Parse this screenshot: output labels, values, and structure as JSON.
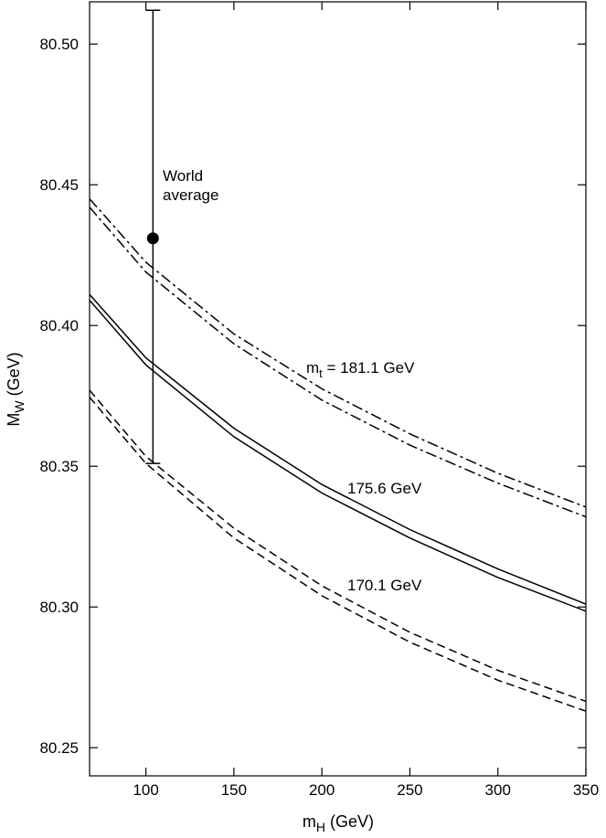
{
  "chart_data": {
    "type": "line",
    "title": "",
    "xlabel": {
      "main": "m",
      "sub": "H",
      "unit": " (GeV)"
    },
    "ylabel": {
      "main": "M",
      "sub": "W",
      "unit": " (GeV)"
    },
    "xlim": [
      68,
      350
    ],
    "ylim": [
      80.24,
      80.515
    ],
    "xticks": [
      100,
      150,
      200,
      250,
      300,
      350
    ],
    "xtick_labels": [
      "100",
      "150",
      "200",
      "250",
      "300",
      "350"
    ],
    "yticks": [
      80.25,
      80.3,
      80.35,
      80.4,
      80.45,
      80.5
    ],
    "ytick_labels": [
      "80.25",
      "80.30",
      "80.35",
      "80.40",
      "80.45",
      "80.50"
    ],
    "grid": false,
    "series": [
      {
        "style": "dashdot",
        "group": "mt_181.1",
        "x": [
          68,
          100,
          150,
          200,
          250,
          300,
          350
        ],
        "y": [
          80.445,
          80.4225,
          80.397,
          80.3775,
          80.3615,
          80.3475,
          80.3355
        ]
      },
      {
        "style": "dashdot",
        "group": "mt_181.1",
        "x": [
          68,
          100,
          150,
          200,
          250,
          300,
          350
        ],
        "y": [
          80.442,
          80.419,
          80.3935,
          80.3735,
          80.3575,
          80.344,
          80.332
        ]
      },
      {
        "style": "solid",
        "group": "mt_175.6",
        "x": [
          68,
          100,
          150,
          200,
          250,
          300,
          350
        ],
        "y": [
          80.411,
          80.3885,
          80.3635,
          80.3435,
          80.3275,
          80.3135,
          80.301
        ]
      },
      {
        "style": "solid",
        "group": "mt_175.6",
        "x": [
          68,
          100,
          150,
          200,
          250,
          300,
          350
        ],
        "y": [
          80.409,
          80.386,
          80.3605,
          80.3405,
          80.3245,
          80.3105,
          80.2985
        ]
      },
      {
        "style": "dashed",
        "group": "mt_170.1",
        "x": [
          68,
          100,
          150,
          200,
          250,
          300,
          350
        ],
        "y": [
          80.377,
          80.3535,
          80.328,
          80.3075,
          80.291,
          80.2775,
          80.2665
        ]
      },
      {
        "style": "dashed",
        "group": "mt_170.1",
        "x": [
          68,
          100,
          150,
          200,
          250,
          300,
          350
        ],
        "y": [
          80.3745,
          80.351,
          80.3245,
          80.304,
          80.2875,
          80.274,
          80.263
        ]
      }
    ],
    "measurement": {
      "x": 104,
      "y": 80.431,
      "y_low": 80.351,
      "y_high": 80.512
    },
    "annotations": {
      "world_average_line1": "World",
      "world_average_line2": "average",
      "mt_prefix": "m",
      "mt_sub": "t",
      "mt_181": " = 181.1 GeV",
      "mt_175": "175.6 GeV",
      "mt_170": "170.1 GeV"
    }
  }
}
